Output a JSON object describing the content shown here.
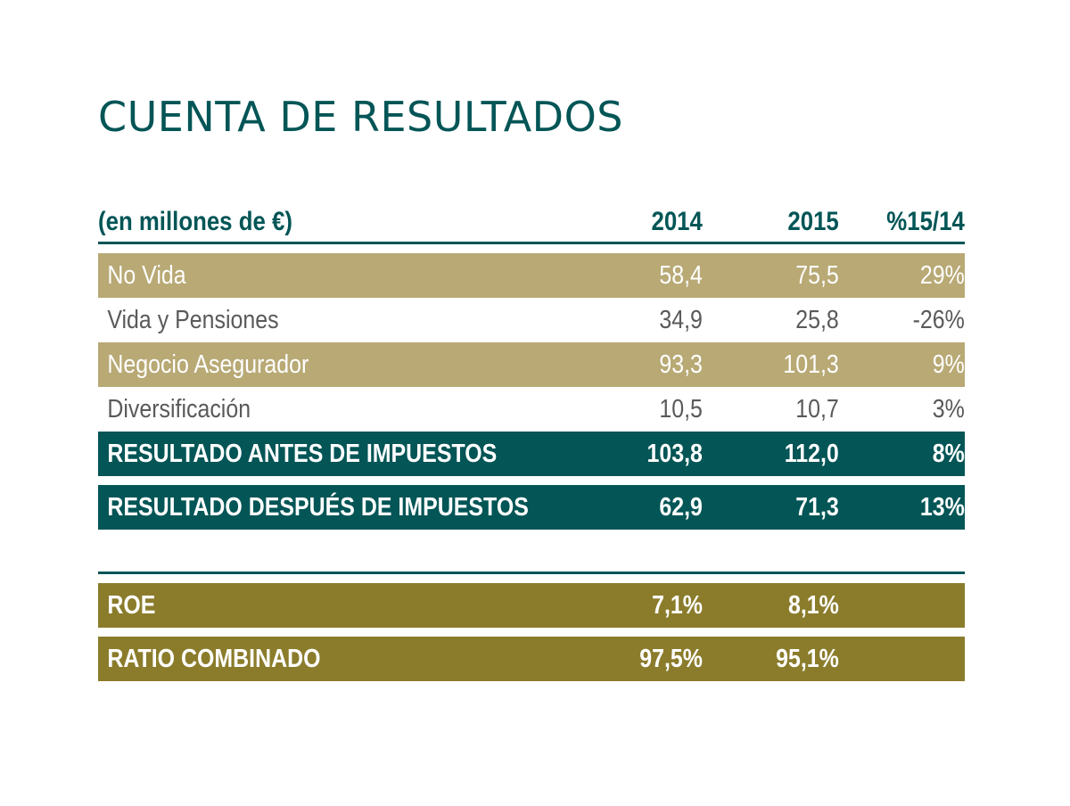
{
  "title": "CUENTA DE RESULTADOS",
  "table": {
    "header": {
      "label": "(en millones de €)",
      "col_2014": "2014",
      "col_2015": "2015",
      "col_pct": "%15/14"
    },
    "rows": [
      {
        "label": "No Vida",
        "v2014": "58,4",
        "v2015": "75,5",
        "pct": "29%"
      },
      {
        "label": "Vida y Pensiones",
        "v2014": "34,9",
        "v2015": "25,8",
        "pct": "-26%"
      },
      {
        "label": "Negocio Asegurador",
        "v2014": "93,3",
        "v2015": "101,3",
        "pct": "9%"
      },
      {
        "label": "Diversificación",
        "v2014": "10,5",
        "v2015": "10,7",
        "pct": "3%"
      }
    ],
    "totals": [
      {
        "label": "RESULTADO ANTES DE IMPUESTOS",
        "v2014": "103,8",
        "v2015": "112,0",
        "pct": "8%"
      },
      {
        "label": "RESULTADO DESPUÉS DE IMPUESTOS",
        "v2014": "62,9",
        "v2015": "71,3",
        "pct": "13%"
      }
    ],
    "ratios": [
      {
        "label": "ROE",
        "v2014": "7,1%",
        "v2015": "8,1%"
      },
      {
        "label": "RATIO COMBINADO",
        "v2014": "97,5%",
        "v2015": "95,1%"
      }
    ]
  },
  "colors": {
    "teal": "#035556",
    "tan": "#b8a975",
    "olive": "#8b7c2c",
    "gray_text": "#5a5a5a"
  }
}
